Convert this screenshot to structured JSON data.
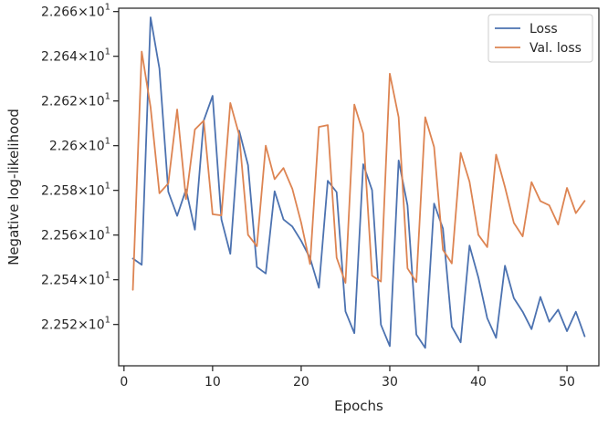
{
  "chart_data": {
    "type": "line",
    "title": "",
    "xlabel": "Epochs",
    "ylabel": "Negative log-likelihood",
    "xlim": [
      -0.6,
      53.6
    ],
    "ylim": [
      22.5015,
      22.6615
    ],
    "xticks": [
      0,
      10,
      20,
      30,
      40,
      50
    ],
    "yticks": [
      {
        "value": 22.52,
        "mantissa": "2.252",
        "exp": "1"
      },
      {
        "value": 22.54,
        "mantissa": "2.254",
        "exp": "1"
      },
      {
        "value": 22.56,
        "mantissa": "2.256",
        "exp": "1"
      },
      {
        "value": 22.58,
        "mantissa": "2.258",
        "exp": "1"
      },
      {
        "value": 22.6,
        "mantissa": "2.26",
        "exp": "1"
      },
      {
        "value": 22.62,
        "mantissa": "2.262",
        "exp": "1"
      },
      {
        "value": 22.64,
        "mantissa": "2.264",
        "exp": "1"
      },
      {
        "value": 22.66,
        "mantissa": "2.266",
        "exp": "1"
      }
    ],
    "tick_times": "×",
    "tick_base": "10",
    "grid": false,
    "legend_position": "top-right",
    "x": [
      1,
      2,
      3,
      4,
      5,
      6,
      7,
      8,
      9,
      10,
      11,
      12,
      13,
      14,
      15,
      16,
      17,
      18,
      19,
      20,
      21,
      22,
      23,
      24,
      25,
      26,
      27,
      28,
      29,
      30,
      31,
      32,
      33,
      34,
      35,
      36,
      37,
      38,
      39,
      40,
      41,
      42,
      43,
      44,
      45,
      46,
      47,
      48,
      49,
      50,
      51,
      52
    ],
    "series": [
      {
        "name": "Loss",
        "color": "#4c72b0",
        "values": [
          22.5495,
          22.5467,
          22.6574,
          22.6345,
          22.5794,
          22.5686,
          22.5804,
          22.5624,
          22.6112,
          22.6223,
          22.5669,
          22.5516,
          22.6067,
          22.5913,
          22.5457,
          22.5428,
          22.5796,
          22.567,
          22.5638,
          22.5574,
          22.5497,
          22.5364,
          22.5843,
          22.5792,
          22.5258,
          22.5161,
          22.5917,
          22.5801,
          22.5199,
          22.5103,
          22.5934,
          22.5733,
          22.5155,
          22.5095,
          22.5741,
          22.5629,
          22.519,
          22.512,
          22.5553,
          22.541,
          22.5228,
          22.514,
          22.5463,
          22.5318,
          22.5257,
          22.5179,
          22.5323,
          22.5212,
          22.5266,
          22.517,
          22.5257,
          22.5147
        ]
      },
      {
        "name": "Val. loss",
        "color": "#dd8452",
        "values": [
          22.5355,
          22.6421,
          22.6172,
          22.5787,
          22.5831,
          22.6162,
          22.5761,
          22.6072,
          22.6112,
          22.5693,
          22.5688,
          22.6191,
          22.6048,
          22.5601,
          22.555,
          22.6,
          22.585,
          22.59,
          22.5807,
          22.5655,
          22.547,
          22.6084,
          22.6092,
          22.5499,
          22.5386,
          22.6184,
          22.6055,
          22.5418,
          22.5392,
          22.6322,
          22.6127,
          22.5451,
          22.539,
          22.6127,
          22.5994,
          22.5534,
          22.5473,
          22.5968,
          22.5839,
          22.5601,
          22.5546,
          22.596,
          22.5815,
          22.5655,
          22.5594,
          22.5837,
          22.5752,
          22.5733,
          22.5647,
          22.5811,
          22.5698,
          22.5753
        ]
      }
    ]
  }
}
